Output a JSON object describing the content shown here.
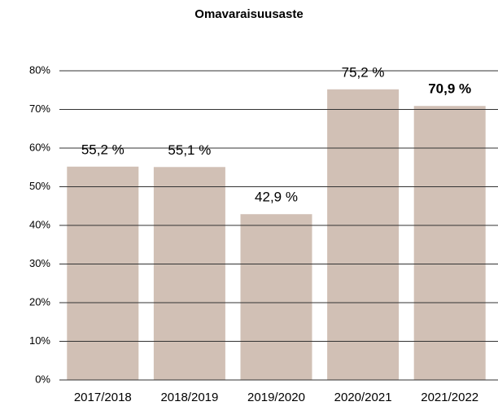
{
  "chart_data": {
    "type": "bar",
    "title": "Omavaraisuusaste",
    "categories": [
      "2017/2018",
      "2018/2019",
      "2019/2020",
      "2020/2021",
      "2021/2022"
    ],
    "values": [
      55.2,
      55.1,
      42.9,
      75.2,
      70.9
    ],
    "value_labels": [
      "55,2 %",
      "55,1 %",
      "42,9 %",
      "75,2 %",
      "70,9 %"
    ],
    "color": "#d1c0b5",
    "ylim": [
      0,
      80
    ],
    "yticks": [
      {
        "value": 0,
        "label": "0%"
      },
      {
        "value": 10,
        "label": "10%"
      },
      {
        "value": 20,
        "label": "20%"
      },
      {
        "value": 30,
        "label": "30%"
      },
      {
        "value": 40,
        "label": "40%"
      },
      {
        "value": 50,
        "label": "50%"
      },
      {
        "value": 60,
        "label": "60%"
      },
      {
        "value": 70,
        "label": "70%"
      },
      {
        "value": 80,
        "label": "80%"
      }
    ],
    "grid": true
  }
}
